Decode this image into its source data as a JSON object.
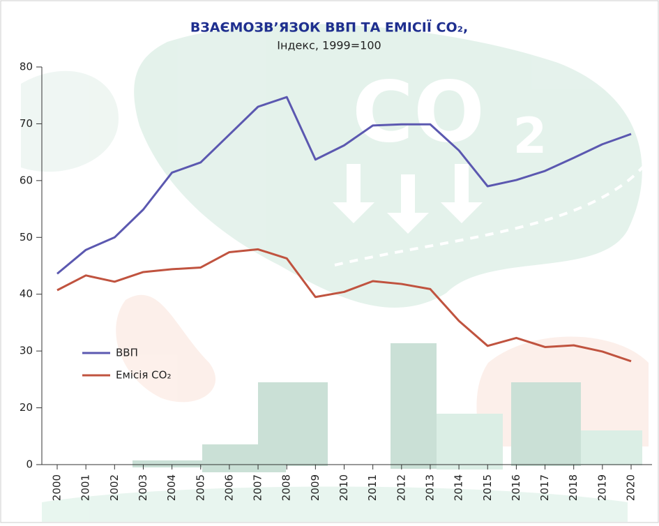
{
  "chart_data": {
    "type": "line",
    "title": "ВЗАЄМОЗВ’ЯЗОК ВВП ТА ЕМІСІЇ CO₂,",
    "subtitle": "Індекс, 1999=100",
    "categories": [
      "2000",
      "2001",
      "2002",
      "2003",
      "2004",
      "2005",
      "2006",
      "2007",
      "2008",
      "2009",
      "2010",
      "2011",
      "2012",
      "2013",
      "2014",
      "2015",
      "2016",
      "2017",
      "2018",
      "2019",
      "2020"
    ],
    "series": [
      {
        "name": "ВВП",
        "color": "#5b58b0",
        "values": [
          43.6,
          47.8,
          50.0,
          54.9,
          61.4,
          63.2,
          68.1,
          73.0,
          74.7,
          63.7,
          66.2,
          69.7,
          69.9,
          69.9,
          65.3,
          59.0,
          60.1,
          61.7,
          64.0,
          66.4,
          68.2
        ]
      },
      {
        "name": "Емісія CO₂",
        "color": "#c0533f",
        "values": [
          40.7,
          43.3,
          42.2,
          43.9,
          44.4,
          44.7,
          47.4,
          47.9,
          46.3,
          39.5,
          40.4,
          42.3,
          41.8,
          40.9,
          35.3,
          30.9,
          32.3,
          30.7,
          31.0,
          29.9,
          28.2
        ]
      }
    ],
    "ylim": [
      10,
      80
    ],
    "yticks": [
      {
        "value": 10,
        "label": "0"
      },
      20,
      30,
      40,
      50,
      60,
      70,
      80
    ],
    "legend": "left"
  }
}
